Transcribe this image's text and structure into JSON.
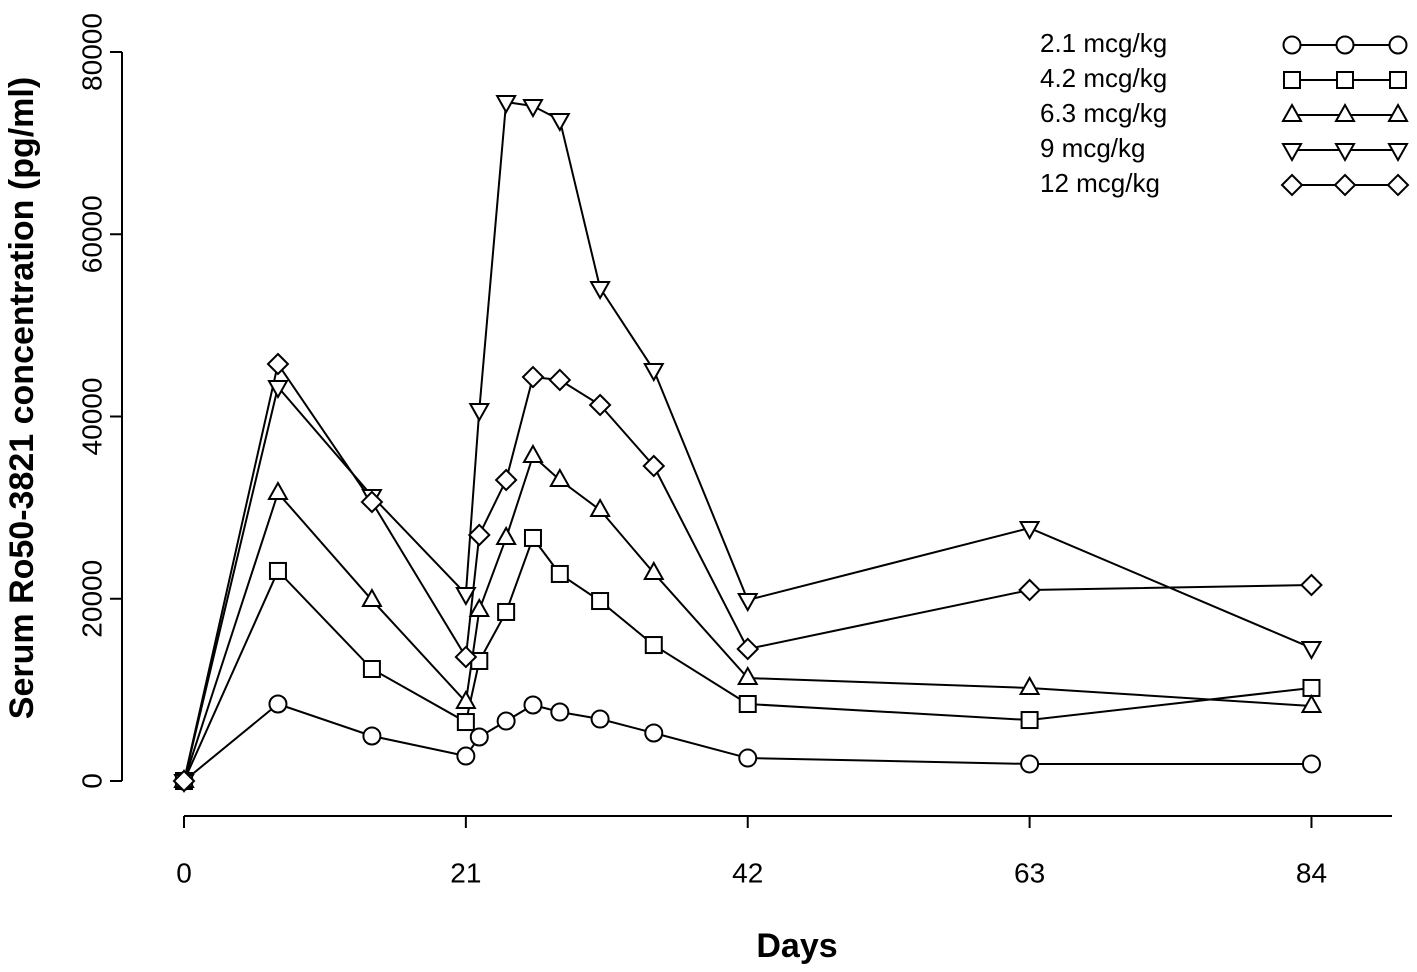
{
  "chart_data": {
    "type": "line",
    "x_label": "Days",
    "y_label": "Serum Ro50-3821 concentration (pg/ml)",
    "x": [
      0,
      7,
      14,
      21,
      22,
      24,
      26,
      28,
      31,
      35,
      42,
      63,
      84
    ],
    "xlim": [
      0,
      90
    ],
    "xticks": [
      0,
      21,
      42,
      63,
      84
    ],
    "ylim": [
      0,
      80000
    ],
    "yticks": [
      0,
      20000,
      40000,
      60000,
      80000
    ],
    "legend": "top-right",
    "series": [
      {
        "name": "2.1 mcg/kg",
        "color": "#000000",
        "marker": "circle",
        "values": [
          0,
          8450,
          4940,
          2740,
          4830,
          6580,
          8340,
          7570,
          6800,
          5270,
          2520,
          1870,
          1870
        ]
      },
      {
        "name": "4.2 mcg/kg",
        "color": "#000000",
        "marker": "square",
        "values": [
          0,
          23050,
          12290,
          6470,
          13170,
          18550,
          26670,
          22720,
          19750,
          14920,
          8450,
          6690,
          10210
        ]
      },
      {
        "name": "6.3 mcg/kg",
        "color": "#000000",
        "marker": "triangle",
        "values": [
          0,
          31600,
          19860,
          8670,
          18770,
          26670,
          35670,
          33030,
          29740,
          22830,
          11300,
          10210,
          8230
        ]
      },
      {
        "name": "9 mcg/kg",
        "color": "#000000",
        "marker": "triangle-down",
        "values": [
          0,
          43240,
          31280,
          20520,
          40710,
          74510,
          74070,
          72540,
          54100,
          45100,
          19860,
          27760,
          14600
        ]
      },
      {
        "name": "12 mcg/kg",
        "color": "#000000",
        "marker": "diamond",
        "values": [
          0,
          45760,
          30620,
          13610,
          27000,
          33030,
          44330,
          44010,
          41260,
          34570,
          14490,
          20960,
          21510
        ]
      }
    ]
  }
}
